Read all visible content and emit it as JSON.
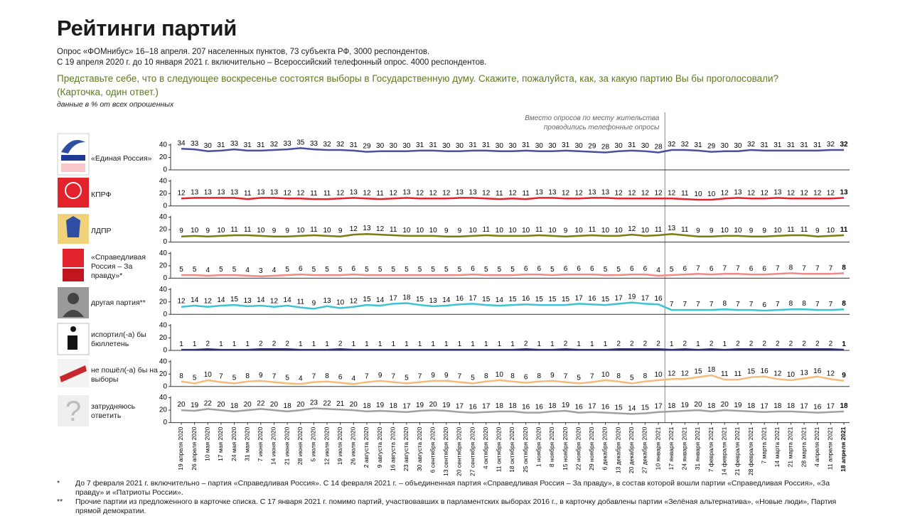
{
  "header": {
    "title": "Рейтинги партий",
    "subtitle_lines": [
      "Опрос «ФОМнибус» 16–18 апреля. 207 населенных пунктов, 73 субъекта РФ, 3000 респондентов.",
      "С 19 апреля 2020 г. до 10 января 2021 г. включительно – Всероссийский телефонный опрос. 4000 респондентов."
    ],
    "question": "Представьте себе, что в следующее воскресенье состоятся выборы в Государственную думу. Скажите, пожалуйста, как, за какую партию Вы бы проголосовали?",
    "question_note": "(Карточка, один ответ.)",
    "note": "данные в % от всех опрошенных"
  },
  "chart_data": {
    "type": "line",
    "annotation_lines": [
      "Вместо опросов по месту жительства",
      "проводились телефонные опросы"
    ],
    "categories": [
      "19 апреля 2020",
      "26 апреля 2020",
      "10 мая 2020",
      "17 мая 2020",
      "24 мая 2020",
      "31 мая 2020",
      "7 июня 2020",
      "14 июня 2020",
      "21 июня 2020",
      "28 июня 2020",
      "5 июля 2020",
      "12 июля 2020",
      "19 июля 2020",
      "26 июля 2020",
      "2 августа 2020",
      "9 августа 2020",
      "16 августа 2020",
      "23 августа 2020",
      "30 августа 2020",
      "6 сентября 2020",
      "13 сентября 2020",
      "20 сентября 2020",
      "27 сентября 2020",
      "4 октября 2020",
      "11 октября 2020",
      "18 октября 2020",
      "25 октября 2020",
      "1 ноября 2020",
      "8 ноября 2020",
      "15 ноября 2020",
      "22 ноября 2020",
      "29 ноября 2020",
      "6 декабря 2020",
      "13 декабря 2020",
      "20 декабря 2020",
      "27 декабря 2020",
      "10 января 2021",
      "17 января 2021",
      "24 января 2021",
      "31 января 2021",
      "7 февраля 2021",
      "14 февраля 2021",
      "21 февраля 2021",
      "28 февраля 2021",
      "7 марта 2021",
      "14 марта 2021",
      "21 марта 2021",
      "28 марта 2021",
      "4 апреля 2021",
      "11 апреля 2021",
      "18 апреля 2021"
    ],
    "ylim": [
      0,
      40
    ],
    "yticks": [
      0,
      20,
      40
    ],
    "series": [
      {
        "name": "«Единая Россия»",
        "color": "#4b509e",
        "values": [
          34,
          33,
          30,
          31,
          33,
          31,
          31,
          32,
          33,
          35,
          33,
          32,
          32,
          31,
          29,
          30,
          30,
          30,
          31,
          31,
          30,
          30,
          31,
          31,
          30,
          30,
          31,
          30,
          30,
          31,
          30,
          29,
          28,
          30,
          31,
          30,
          28,
          32,
          32,
          31,
          29,
          30,
          30,
          32,
          31,
          31,
          31,
          31,
          31,
          32,
          32
        ]
      },
      {
        "name": "КПРФ",
        "color": "#e3232b",
        "values": [
          12,
          13,
          13,
          13,
          13,
          11,
          13,
          13,
          12,
          12,
          11,
          11,
          12,
          13,
          12,
          11,
          12,
          13,
          12,
          12,
          12,
          13,
          13,
          12,
          11,
          12,
          11,
          13,
          13,
          12,
          12,
          13,
          13,
          12,
          12,
          12,
          12,
          12,
          11,
          10,
          10,
          12,
          13,
          12,
          12,
          13,
          12,
          12,
          12,
          12,
          13
        ]
      },
      {
        "name": "ЛДПР",
        "color": "#7b7b12",
        "values": [
          9,
          10,
          9,
          10,
          11,
          11,
          10,
          9,
          9,
          10,
          11,
          10,
          9,
          12,
          13,
          12,
          11,
          10,
          10,
          10,
          9,
          9,
          10,
          11,
          10,
          10,
          10,
          11,
          10,
          9,
          10,
          11,
          10,
          10,
          12,
          10,
          11,
          13,
          11,
          9,
          9,
          10,
          10,
          9,
          9,
          10,
          11,
          11,
          9,
          10,
          11
        ]
      },
      {
        "name": "«Справедливая Россия – За правду»*",
        "color": "#f18a86",
        "values": [
          5,
          5,
          4,
          5,
          5,
          4,
          3,
          4,
          5,
          6,
          5,
          5,
          5,
          6,
          5,
          5,
          5,
          5,
          5,
          5,
          5,
          5,
          6,
          5,
          5,
          5,
          6,
          6,
          5,
          6,
          6,
          6,
          5,
          5,
          6,
          6,
          4,
          5,
          6,
          7,
          6,
          7,
          7,
          6,
          6,
          7,
          8,
          7,
          7,
          7,
          8
        ]
      },
      {
        "name": "другая партия**",
        "color": "#3ec3d3",
        "values": [
          12,
          14,
          12,
          14,
          15,
          13,
          14,
          12,
          14,
          11,
          9,
          13,
          10,
          12,
          15,
          14,
          17,
          18,
          15,
          13,
          14,
          16,
          17,
          15,
          14,
          15,
          16,
          15,
          15,
          15,
          17,
          16,
          15,
          17,
          19,
          17,
          16,
          7,
          7,
          7,
          7,
          8,
          7,
          7,
          6,
          7,
          8,
          8,
          7,
          7,
          8
        ]
      },
      {
        "name": "испортил(-а) бы бюллетень",
        "color": "#2c3270",
        "values": [
          1,
          1,
          2,
          1,
          1,
          1,
          2,
          2,
          2,
          1,
          1,
          1,
          2,
          1,
          1,
          1,
          1,
          1,
          1,
          1,
          1,
          1,
          1,
          1,
          1,
          1,
          2,
          1,
          1,
          2,
          1,
          1,
          1,
          2,
          2,
          2,
          2,
          1,
          2,
          1,
          2,
          1,
          2,
          2,
          2,
          2,
          2,
          2,
          2,
          2,
          1
        ]
      },
      {
        "name": "не пошёл(-а) бы на выборы",
        "color": "#f5bb7a",
        "values": [
          8,
          5,
          10,
          7,
          5,
          8,
          9,
          7,
          5,
          4,
          7,
          8,
          6,
          4,
          7,
          9,
          7,
          5,
          7,
          9,
          9,
          7,
          5,
          8,
          10,
          8,
          6,
          8,
          9,
          7,
          5,
          7,
          10,
          8,
          5,
          8,
          10,
          12,
          12,
          15,
          18,
          11,
          11,
          15,
          16,
          12,
          10,
          13,
          16,
          12,
          9
        ]
      },
      {
        "name": "затрудняюсь ответить",
        "color": "#a0a0a0",
        "values": [
          20,
          19,
          22,
          20,
          18,
          20,
          22,
          20,
          18,
          20,
          23,
          22,
          21,
          20,
          18,
          19,
          18,
          17,
          19,
          20,
          19,
          17,
          16,
          17,
          18,
          18,
          16,
          16,
          18,
          19,
          16,
          17,
          16,
          15,
          14,
          15,
          17,
          18,
          19,
          20,
          18,
          20,
          19,
          18,
          17,
          18,
          18,
          17,
          16,
          17,
          18
        ]
      }
    ]
  },
  "footnotes": [
    {
      "mark": "*",
      "text": "До 7 февраля 2021 г. включительно – партия «Справедливая Россия». С 14 февраля 2021 г. – объединенная партия «Справедливая Россия – За правду», в состав которой вошли партии «Справедливая Россия», «За правду» и «Патриоты России»."
    },
    {
      "mark": "**",
      "text": "Прочие партии из предложенного в карточке списка. С 17 января 2021 г. помимо партий, участвовавших в парламентских выборах 2016 г., в карточку добавлены партии «Зелёная альтернатива», «Новые люди», Партия прямой демократии."
    }
  ]
}
